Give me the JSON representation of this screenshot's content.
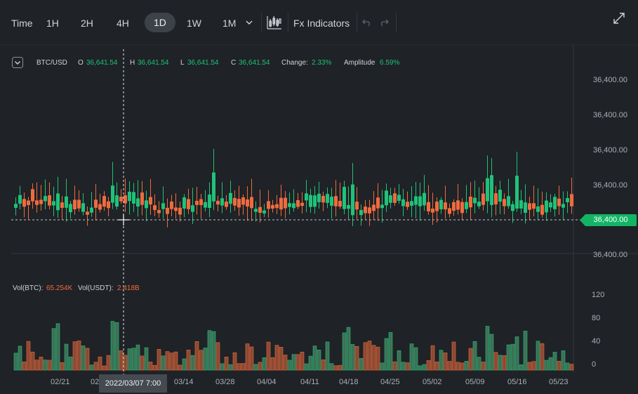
{
  "toolbar": {
    "time_label": "Time",
    "intervals": [
      "1H",
      "2H",
      "4H",
      "1D",
      "1W",
      "1M"
    ],
    "selected": "1D",
    "indicators_label": "Fx Indicators"
  },
  "ticker": {
    "symbol": "BTC/USD",
    "o_label": "O",
    "o_value": "36,641.54",
    "h_label": "H",
    "h_value": "36,641.54",
    "l_label": "L",
    "l_value": "36,641.54",
    "c_label": "C",
    "c_value": "36,641.54",
    "change_label": "Change:",
    "change_value": "2.33%",
    "amplitude_label": "Amplitude",
    "amplitude_value": "6.59%"
  },
  "price_axis": [
    "36,400.00",
    "36,400.00",
    "36,400.00",
    "36,400.00",
    "36,400.00",
    "36,400.00"
  ],
  "current_price": "36,400.00",
  "volume": {
    "btc_label": "Vol(BTC):",
    "btc_value": "65.254K",
    "usdt_label": "Vol(USDT):",
    "usdt_value": "2.418B",
    "axis": [
      "120",
      "80",
      "40",
      "0"
    ]
  },
  "date_axis": [
    "02/21",
    "02",
    "03/14",
    "03/28",
    "04/04",
    "04/11",
    "04/18",
    "04/25",
    "05/02",
    "05/09",
    "05/16",
    "05/23"
  ],
  "crosshair_date": "2022/03/07 7:00",
  "colors": {
    "up": "#1fc27a",
    "down": "#ef6b3e",
    "background": "#1f2226"
  }
}
